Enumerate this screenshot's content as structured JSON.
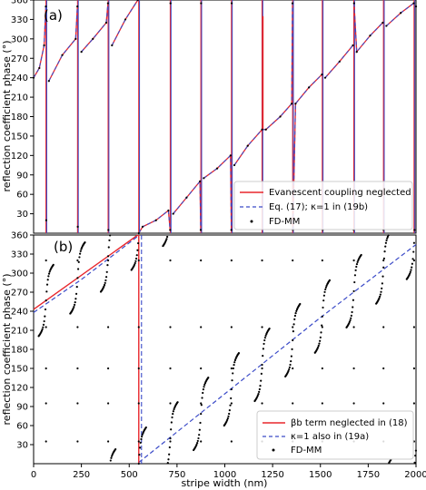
{
  "chart_data": [
    {
      "type": "line",
      "panel_label": "(a)",
      "ylabel": "reflection coefficient phase (°)",
      "xlim": [
        0,
        2000
      ],
      "ylim": [
        0,
        360
      ],
      "yticks": [
        "30",
        "60",
        "90",
        "120",
        "150",
        "180",
        "210",
        "240",
        "270",
        "300",
        "330",
        "360"
      ],
      "legend": {
        "position": "lower-right",
        "entries": [
          "Evanescent coupling neglected",
          "Eq. (17); κ=1 in (19b)",
          "FD-MM"
        ]
      },
      "series": [
        {
          "name": "Evanescent coupling neglected",
          "color": "#e8262c",
          "style": "solid"
        },
        {
          "name": "Eq. (17); κ=1 in (19b)",
          "color": "#3b4bc8",
          "style": "dashed"
        },
        {
          "name": "FD-MM",
          "color": "#000000",
          "style": "markers"
        }
      ],
      "resonances": [
        65,
        230,
        390,
        550,
        715,
        875,
        1035,
        1195,
        1355,
        1510,
        1675,
        1830,
        1990
      ],
      "anomaly_at": 1200,
      "curve_points": [
        [
          0,
          240
        ],
        [
          30,
          255
        ],
        [
          55,
          290
        ],
        [
          64,
          350
        ],
        [
          66,
          20
        ],
        [
          80,
          235
        ],
        [
          150,
          275
        ],
        [
          220,
          300
        ],
        [
          229,
          350
        ],
        [
          231,
          10
        ],
        [
          250,
          280
        ],
        [
          310,
          300
        ],
        [
          380,
          325
        ],
        [
          389,
          355
        ],
        [
          391,
          5
        ],
        [
          410,
          290
        ],
        [
          480,
          330
        ],
        [
          545,
          360
        ],
        [
          550,
          0
        ],
        [
          570,
          10
        ],
        [
          640,
          20
        ],
        [
          705,
          35
        ],
        [
          714,
          5
        ],
        [
          716,
          355
        ],
        [
          730,
          30
        ],
        [
          800,
          55
        ],
        [
          870,
          80
        ],
        [
          874,
          5
        ],
        [
          876,
          355
        ],
        [
          890,
          85
        ],
        [
          960,
          100
        ],
        [
          1030,
          120
        ],
        [
          1034,
          5
        ],
        [
          1036,
          355
        ],
        [
          1050,
          105
        ],
        [
          1120,
          135
        ],
        [
          1195,
          160
        ],
        [
          1215,
          160
        ],
        [
          1290,
          180
        ],
        [
          1350,
          200
        ],
        [
          1354,
          355
        ],
        [
          1356,
          5
        ],
        [
          1370,
          200
        ],
        [
          1440,
          225
        ],
        [
          1508,
          245
        ],
        [
          1512,
          5
        ],
        [
          1525,
          240
        ],
        [
          1600,
          265
        ],
        [
          1670,
          290
        ],
        [
          1674,
          5
        ],
        [
          1676,
          355
        ],
        [
          1690,
          280
        ],
        [
          1760,
          305
        ],
        [
          1826,
          325
        ],
        [
          1830,
          5
        ],
        [
          1845,
          320
        ],
        [
          1920,
          340
        ],
        [
          1988,
          355
        ],
        [
          1992,
          5
        ],
        [
          2000,
          350
        ]
      ]
    },
    {
      "type": "line",
      "panel_label": "(b)",
      "xlabel": "stripe width (nm)",
      "ylabel": "reflection coefficient phase (°)",
      "xlim": [
        0,
        2000
      ],
      "ylim": [
        0,
        360
      ],
      "xticks": [
        "0",
        "250",
        "500",
        "750",
        "1000",
        "1250",
        "1500",
        "1750",
        "2000"
      ],
      "yticks": [
        "30",
        "60",
        "90",
        "120",
        "150",
        "180",
        "210",
        "240",
        "270",
        "300",
        "330",
        "360"
      ],
      "legend": {
        "position": "lower-right",
        "entries": [
          "βb term neglected in (18)",
          "κ=1 also in (19a)",
          "FD-MM"
        ]
      },
      "series": [
        {
          "name": "βb term neglected in (18)",
          "color": "#e8262c",
          "style": "solid",
          "points": [
            [
              0,
              243
            ],
            [
              545,
              360
            ],
            [
              550,
              0
            ],
            [
              2000,
              350
            ]
          ]
        },
        {
          "name": "κ=1 also in (19a)",
          "color": "#3b4bc8",
          "style": "dashed",
          "points": [
            [
              0,
              238
            ],
            [
              250,
              290
            ],
            [
              545,
              358
            ],
            [
              550,
              2
            ],
            [
              1000,
              110
            ],
            [
              1500,
              230
            ],
            [
              2000,
              345
            ]
          ]
        },
        {
          "name": "FD-MM",
          "color": "#000000",
          "style": "markers"
        }
      ],
      "fdmm_resonances": [
        65,
        230,
        390,
        550,
        715,
        875,
        1035,
        1195,
        1355,
        1510,
        1675,
        1830,
        1990
      ]
    }
  ]
}
